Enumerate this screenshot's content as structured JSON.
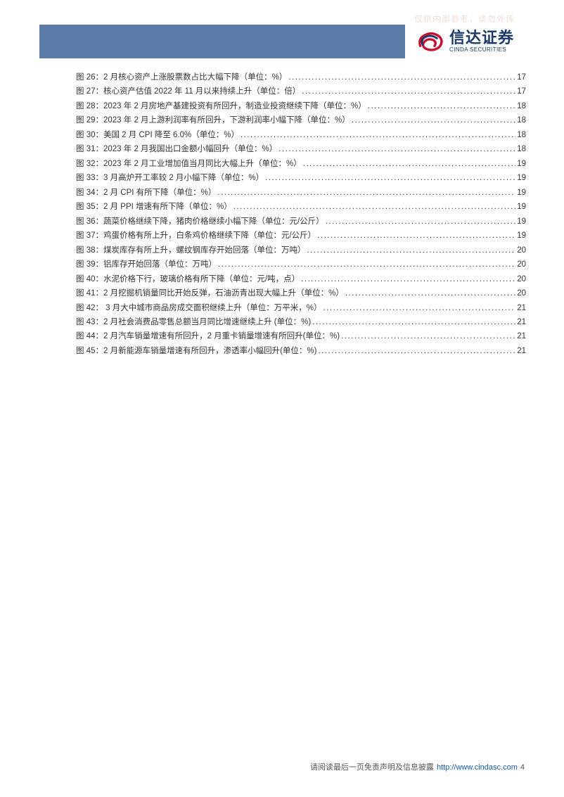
{
  "watermark": "仅供内部参考，请勿外传",
  "logo": {
    "cn": "信达证券",
    "en": "CINDA SECURITIES"
  },
  "toc_entries": [
    {
      "label": "图 26：2 月核心资产上涨股票数占比大幅下降（单位：%）",
      "page": "17"
    },
    {
      "label": "图 27：核心资产估值 2022 年 11 月以来持续上升（单位：倍）",
      "page": "17"
    },
    {
      "label": "图 28：2023 年 2 月房地产基建投资有所回升，制造业投资继续下降（单位：%）",
      "page": "18"
    },
    {
      "label": "图 29：2023 年 2 月上游利润率有所回升，下游利润率小幅下降（单位：%）",
      "page": "18"
    },
    {
      "label": "图 30：美国 2 月 CPI 降至 6.0%（单位：%）",
      "page": "18"
    },
    {
      "label": "图 31：2023 年 2 月我国出口金额小幅回升（单位：%）",
      "page": "18"
    },
    {
      "label": "图 32：2023 年 2 月工业增加值当月同比大幅上升（单位：%）",
      "page": "19"
    },
    {
      "label": "图 33：3 月高炉开工率较 2 月小幅下降（单位：%）",
      "page": "19"
    },
    {
      "label": "图 34：2 月 CPI 有所下降（单位：%）",
      "page": "19"
    },
    {
      "label": "图 35：2 月 PPI 增速有所下降（单位：%）",
      "page": "19"
    },
    {
      "label": "图 36：蔬菜价格继续下降，猪肉价格继续小幅下降（单位：元/公斤）",
      "page": "19"
    },
    {
      "label": "图 37：鸡蛋价格有所上升，白条鸡价格继续下降（单位：元/公斤）",
      "page": "19"
    },
    {
      "label": "图 38：煤炭库存有所上升，螺纹钢库存开始回落（单位：万吨）",
      "page": "20"
    },
    {
      "label": "图 39：铝库存开始回落（单位：万吨）",
      "page": "20"
    },
    {
      "label": "图 40：水泥价格下行，玻璃价格有所下降（单位：元/吨，点）",
      "page": "20"
    },
    {
      "label": "图 41：2 月挖掘机销量同比开始反弹，石油沥青出现大幅上升（单位：%）",
      "page": "20"
    },
    {
      "label": "图 42： 3 月大中城市商品房成交面积继续上升（单位：万平米，%）",
      "page": "21"
    },
    {
      "label": "图 43：2 月社会消费品零售总额当月同比增速继续上升 (单位：%)",
      "page": "21"
    },
    {
      "label": "图 44：2 月汽车销量增速有所回升，2 月重卡销量增速有所回升(单位：%)",
      "page": "21"
    },
    {
      "label": "图 45：2 月新能源车销量增速有所回升，渗透率小幅回升(单位：%)",
      "page": "21"
    }
  ],
  "footer": {
    "text": "请阅读最后一页免责声明及信息披露",
    "link_text": "http://www.cindasc.com",
    "page_num": "4"
  },
  "colors": {
    "header_blue": "#5a7ba8",
    "logo_red": "#c8102e",
    "logo_navy": "#1a3a6a",
    "link_blue": "#1a5aa8"
  }
}
